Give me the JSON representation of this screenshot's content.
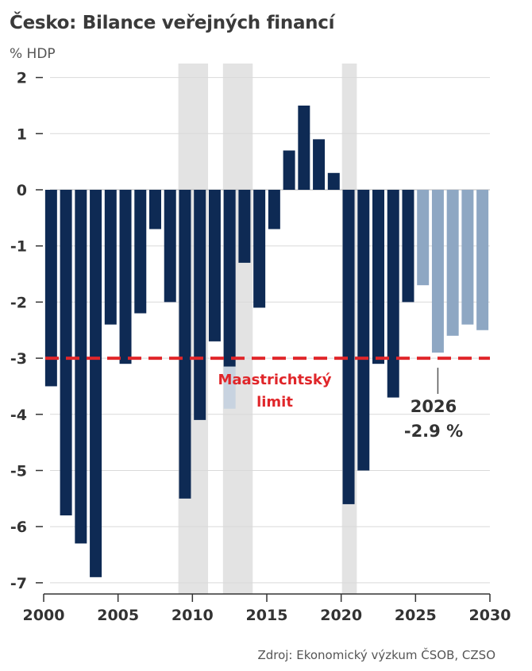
{
  "title": "Česko: Bilance veřejných financí",
  "unit": "% HDP",
  "source": "Zdroj: Ekonomický výzkum ČSOB, CZSO",
  "colors": {
    "actual": "#0e2a54",
    "forecast": "#8ea7c3",
    "limit": "#e0262a",
    "shade": "#e3e3e3",
    "grid": "#d9d9d9"
  },
  "chart_data": {
    "type": "bar",
    "x": [
      2000,
      2001,
      2002,
      2003,
      2004,
      2005,
      2006,
      2007,
      2008,
      2009,
      2010,
      2011,
      2012,
      2013,
      2014,
      2015,
      2016,
      2017,
      2018,
      2019,
      2020,
      2021,
      2022,
      2023,
      2024,
      2025,
      2026,
      2027,
      2028,
      2029
    ],
    "series": [
      {
        "values": [
          -3.5,
          -5.8,
          -6.3,
          -6.9,
          -2.4,
          -3.1,
          -2.2,
          -0.7,
          -2.0,
          -5.5,
          -4.1,
          -2.7,
          -3.9,
          -1.3,
          -2.1,
          -0.7,
          0.7,
          1.5,
          0.9,
          0.3,
          -5.6,
          -5.0,
          -3.1,
          -3.7,
          -2.0,
          -1.7,
          -2.9,
          -2.6,
          -2.4,
          -2.5
        ],
        "forecast_from": 2025
      }
    ],
    "xticks": [
      2000,
      2005,
      2010,
      2015,
      2020,
      2025,
      2030
    ],
    "yticks": [
      2,
      1,
      0,
      -1,
      -2,
      -3,
      -4,
      -5,
      -6,
      -7
    ],
    "ylim": [
      -7.25,
      2.1
    ],
    "xlim": [
      2000,
      2030
    ],
    "shaded_periods": [
      [
        2009,
        2011
      ],
      [
        2012,
        2014
      ],
      [
        2020,
        2021
      ]
    ],
    "reference_line": {
      "value": -3,
      "label_line1": "Maastrichtský",
      "label_line2": "limit"
    },
    "annotation": {
      "year": 2026,
      "line1": "2026",
      "line2": "-2.9 %"
    },
    "grid": true
  }
}
